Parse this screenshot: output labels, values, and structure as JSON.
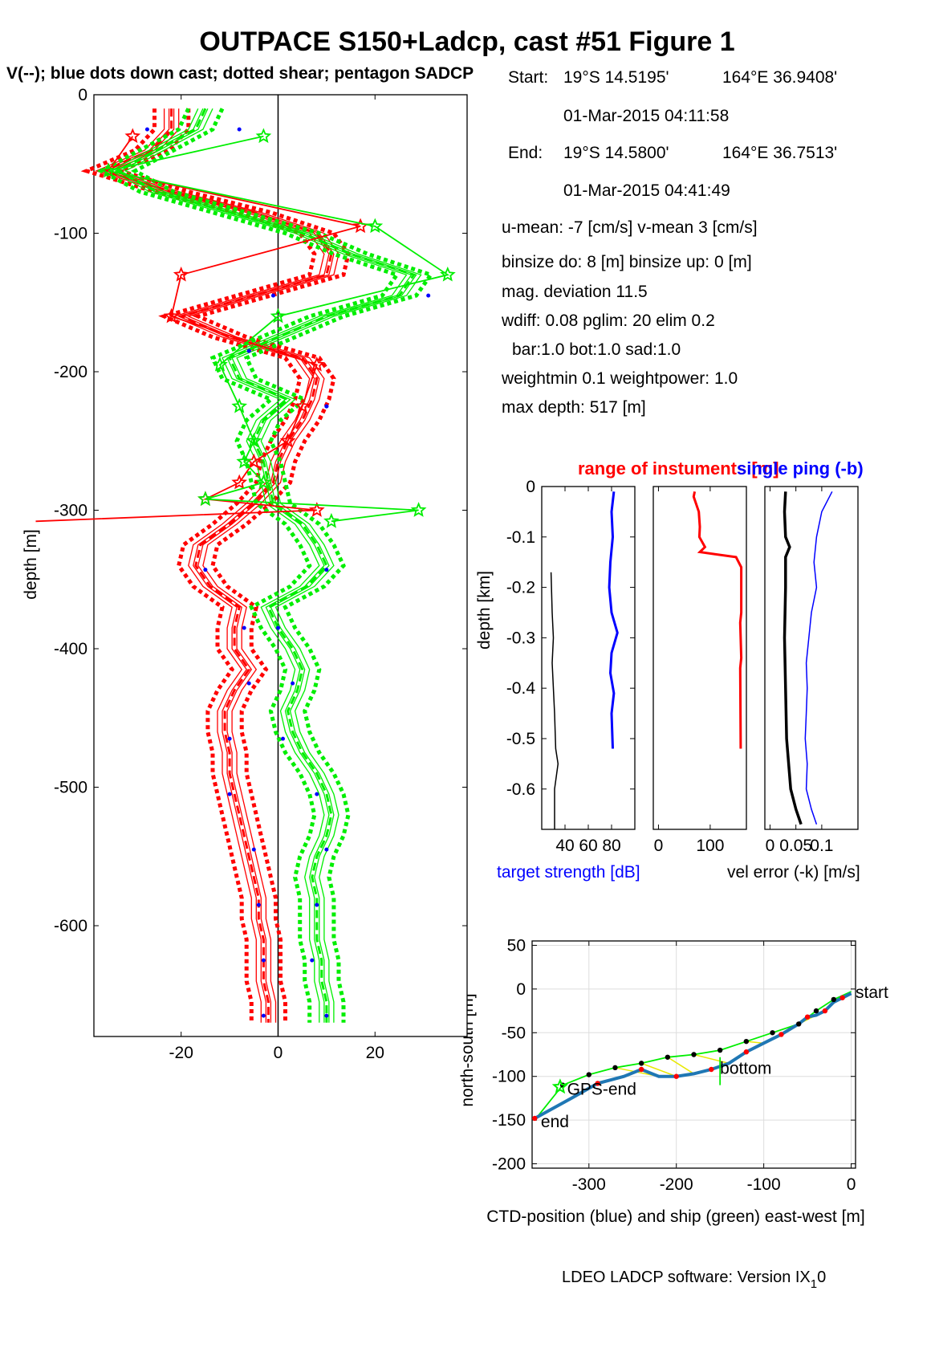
{
  "title": "OUTPACE S150+Ladcp, cast #51  Figure 1",
  "subtitle": "V(--); blue dots down cast; dotted shear; pentagon SADCP",
  "info": {
    "start_label": "Start:",
    "start_lat": "19°S 14.5195'",
    "start_lon": "164°E 36.9408'",
    "start_time": "01-Mar-2015 04:11:58",
    "end_label": "End:",
    "end_lat": "19°S 14.5800'",
    "end_lon": "164°E 36.7513'",
    "end_time": "01-Mar-2015 04:41:49",
    "means": "u-mean:  -7 [cm/s]    v-mean   3 [cm/s]",
    "binsize": "binsize do: 8 [m]  binsize up:  0 [m]",
    "magdev": "mag. deviation 11.5",
    "wdiff": "wdiff: 0.08  pglim: 20  elim 0.2",
    "bar": "bar:1.0 bot:1.0 sad:1.0",
    "weight": "weightmin 0.1  weightpower: 1.0",
    "maxdepth": "max depth: 517 [m]"
  },
  "footer": "LDEO LADCP software: Version IX",
  "footer_sub": "1",
  "footer_tail": "0",
  "colors": {
    "u": "#ff0000",
    "v": "#00ee00",
    "blue": "#0000ff",
    "ctd": "#1f77b4",
    "yellow": "#e8e800"
  },
  "chart_data": [
    {
      "type": "line",
      "name": "velocity profile",
      "ylabel": "depth [m]",
      "xlim": [
        -38,
        39
      ],
      "ylim": [
        -680,
        0
      ],
      "xticks": [
        -20,
        0,
        20
      ],
      "yticks": [
        0,
        -100,
        -200,
        -300,
        -400,
        -500,
        -600
      ],
      "series": [
        {
          "name": "u",
          "color": "#ff0000",
          "depth": [
            -10,
            -25,
            -40,
            -55,
            -70,
            -85,
            -100,
            -115,
            -130,
            -145,
            -160,
            -175,
            -190,
            -205,
            -220,
            -235,
            -250,
            -265,
            -280,
            -295,
            -310,
            -325,
            -340,
            -355,
            -370,
            -385,
            -400,
            -415,
            -430,
            -445,
            -460,
            -475,
            -490,
            -505,
            -520,
            -535,
            -550,
            -565,
            -580,
            -595,
            -610,
            -625,
            -640,
            -655,
            -670
          ],
          "x": [
            -22,
            -22,
            -26,
            -36,
            -22,
            -5,
            8,
            11,
            10,
            -5,
            -20,
            -10,
            5,
            8,
            7,
            5,
            2,
            0,
            -1,
            -5,
            -10,
            -16,
            -17,
            -14,
            -8,
            -9,
            -9,
            -6,
            -9,
            -11,
            -11,
            -10,
            -10,
            -9,
            -8,
            -7,
            -6,
            -5,
            -4,
            -4,
            -3,
            -3,
            -3,
            -2,
            -2
          ]
        },
        {
          "name": "v",
          "color": "#00ee00",
          "depth": [
            -10,
            -25,
            -40,
            -55,
            -70,
            -85,
            -100,
            -115,
            -130,
            -145,
            -160,
            -175,
            -190,
            -205,
            -220,
            -235,
            -250,
            -265,
            -280,
            -295,
            -310,
            -325,
            -340,
            -355,
            -370,
            -385,
            -400,
            -415,
            -430,
            -445,
            -460,
            -475,
            -490,
            -505,
            -520,
            -535,
            -550,
            -565,
            -580,
            -595,
            -610,
            -625,
            -640,
            -655,
            -670
          ],
          "x": [
            -15,
            -17,
            -25,
            -33,
            -25,
            -10,
            5,
            15,
            28,
            25,
            10,
            0,
            -10,
            -8,
            2,
            -3,
            -5,
            -3,
            -2,
            -1,
            5,
            8,
            10,
            6,
            -2,
            0,
            3,
            5,
            4,
            2,
            3,
            5,
            8,
            10,
            11,
            10,
            8,
            7,
            8,
            8,
            8,
            9,
            9,
            10,
            10
          ]
        }
      ],
      "sadcp": {
        "depth": [
          -30,
          -55,
          -95,
          -130,
          -160,
          -195,
          -225,
          -250,
          -265,
          -280,
          -292,
          -300,
          -308
        ],
        "u": [
          -30,
          -35,
          17,
          -20,
          -22,
          8,
          5,
          2,
          -5,
          -8,
          -15,
          8,
          -50
        ],
        "v": [
          -3,
          -35,
          20,
          35,
          0,
          -12,
          -8,
          -5,
          -7,
          -3,
          -15,
          29,
          11
        ]
      },
      "downcast_dots": {
        "depth": [
          -25,
          -145,
          -185,
          -225,
          -343,
          -385,
          -425,
          -465,
          -505,
          -545,
          -585,
          -625,
          -665
        ],
        "x": [
          -27,
          -1,
          -6,
          10,
          -15,
          -7,
          -6,
          -10,
          -10,
          -5,
          -4,
          -3,
          -3
        ],
        "v": [
          -8,
          31,
          -6,
          10,
          10,
          0,
          3,
          1,
          8,
          10,
          8,
          7,
          10
        ]
      }
    },
    {
      "type": "line",
      "name": "target strength",
      "title": "",
      "ylabel": "depth [km]",
      "xlabel": "target strength [dB]",
      "xlim": [
        20,
        100
      ],
      "ylim": [
        -0.68,
        0
      ],
      "xticks": [
        40,
        60,
        80
      ],
      "yticks": [
        0,
        -0.1,
        -0.2,
        -0.3,
        -0.4,
        -0.5,
        -0.6
      ],
      "series": [
        {
          "name": "blue",
          "color": "#0000ff",
          "depth": [
            -0.01,
            -0.05,
            -0.1,
            -0.15,
            -0.2,
            -0.25,
            -0.29,
            -0.33,
            -0.37,
            -0.41,
            -0.45,
            -0.52
          ],
          "x": [
            82,
            80,
            81,
            79,
            78,
            80,
            85,
            80,
            79,
            82,
            80,
            81
          ]
        },
        {
          "name": "black",
          "color": "#000000",
          "depth": [
            -0.17,
            -0.25,
            -0.3,
            -0.35,
            -0.45,
            -0.52,
            -0.55,
            -0.6,
            -0.68
          ],
          "x": [
            28,
            29,
            30,
            29,
            31,
            32,
            34,
            31,
            31
          ]
        }
      ]
    },
    {
      "type": "line",
      "name": "range",
      "title": "range of instuments [m]",
      "xlim": [
        -10,
        170
      ],
      "ylim": [
        -0.68,
        0
      ],
      "xticks": [
        0,
        100
      ],
      "series": [
        {
          "name": "range",
          "color": "#ff0000",
          "depth": [
            -0.01,
            -0.02,
            -0.05,
            -0.08,
            -0.1,
            -0.12,
            -0.13,
            -0.14,
            -0.16,
            -0.25,
            -0.27,
            -0.34,
            -0.36,
            -0.52
          ],
          "x": [
            70,
            68,
            78,
            80,
            79,
            90,
            80,
            150,
            160,
            160,
            158,
            160,
            158,
            159
          ]
        }
      ]
    },
    {
      "type": "line",
      "name": "vel error",
      "title": "single ping (-b)",
      "xlabel": "vel error (-k) [m/s]",
      "xlim": [
        -0.01,
        0.17
      ],
      "ylim": [
        -0.68,
        0
      ],
      "xticks": [
        0,
        0.05,
        0.1
      ],
      "xticklabels": [
        "0",
        "0.05",
        "0.1"
      ],
      "series": [
        {
          "name": "black",
          "color": "#000000",
          "depth": [
            -0.01,
            -0.05,
            -0.1,
            -0.12,
            -0.14,
            -0.2,
            -0.3,
            -0.4,
            -0.5,
            -0.6,
            -0.64,
            -0.67
          ],
          "x": [
            0.03,
            0.028,
            0.03,
            0.038,
            0.03,
            0.03,
            0.028,
            0.03,
            0.032,
            0.04,
            0.05,
            0.06
          ]
        },
        {
          "name": "blue",
          "color": "#0000ff",
          "depth": [
            -0.01,
            -0.05,
            -0.1,
            -0.15,
            -0.2,
            -0.25,
            -0.3,
            -0.35,
            -0.4,
            -0.45,
            -0.5,
            -0.55,
            -0.6,
            -0.64,
            -0.67
          ],
          "x": [
            0.12,
            0.1,
            0.09,
            0.085,
            0.09,
            0.08,
            0.075,
            0.07,
            0.072,
            0.07,
            0.068,
            0.072,
            0.07,
            0.08,
            0.09
          ]
        }
      ]
    },
    {
      "type": "line",
      "name": "position",
      "xlabel": "CTD-position (blue) and ship (green) east-west [m]",
      "ylabel": "north-south [m]",
      "xlim": [
        -365,
        5
      ],
      "ylim": [
        -205,
        55
      ],
      "xticks": [
        -300,
        -200,
        -100,
        0
      ],
      "yticks": [
        50,
        0,
        -50,
        -100,
        -150,
        -200
      ],
      "series": [
        {
          "name": "CTD",
          "color": "#1f77b4",
          "x": [
            0,
            -10,
            -20,
            -30,
            -40,
            -50,
            -60,
            -80,
            -100,
            -120,
            -140,
            -160,
            -180,
            -200,
            -220,
            -240,
            -260,
            -290,
            -320,
            -362
          ],
          "y": [
            -5,
            -10,
            -15,
            -25,
            -30,
            -32,
            -40,
            -52,
            -62,
            -72,
            -85,
            -92,
            -97,
            -100,
            -100,
            -92,
            -100,
            -108,
            -125,
            -148
          ]
        },
        {
          "name": "ship",
          "color": "#00ee00",
          "x": [
            0,
            -20,
            -40,
            -60,
            -90,
            -120,
            -150,
            -180,
            -210,
            -240,
            -270,
            -300,
            -330,
            -362
          ],
          "y": [
            -3,
            -12,
            -25,
            -40,
            -50,
            -60,
            -70,
            -75,
            -78,
            -85,
            -90,
            -98,
            -110,
            -150
          ]
        }
      ],
      "labels": {
        "start": "start",
        "bottom": "bottom",
        "gps_end": "GPS-end",
        "end": "end"
      }
    }
  ]
}
